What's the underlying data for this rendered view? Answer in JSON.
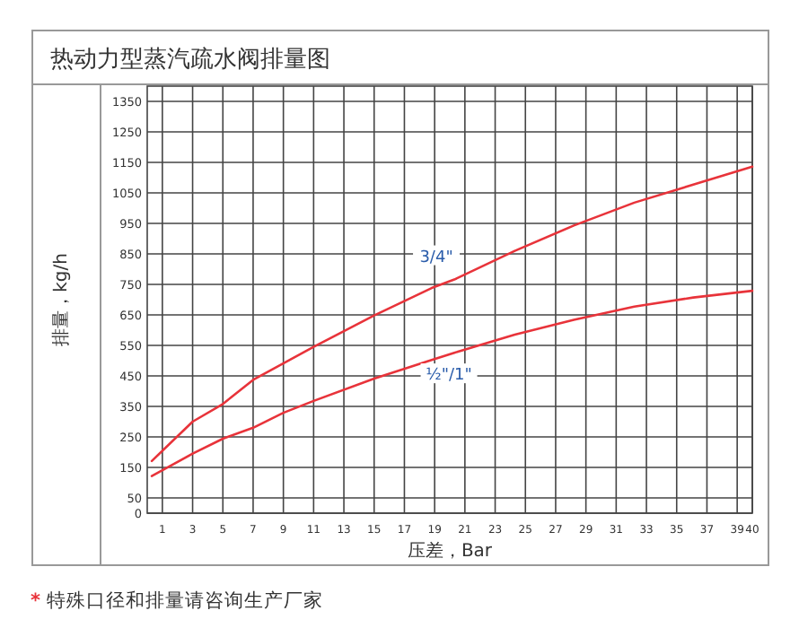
{
  "chart_data": {
    "type": "line",
    "title": "热动力型蒸汽疏水阀排量图",
    "xlabel": "压差，Bar",
    "ylabel": "排量，kg/h",
    "xlim": [
      0,
      40
    ],
    "ylim": [
      0,
      1400
    ],
    "xticks": [
      1,
      3,
      5,
      7,
      9,
      11,
      13,
      15,
      17,
      19,
      21,
      23,
      25,
      27,
      29,
      31,
      33,
      35,
      37,
      39,
      40
    ],
    "yticks": [
      0,
      50,
      150,
      250,
      350,
      450,
      550,
      650,
      750,
      850,
      950,
      1050,
      1150,
      1250,
      1350
    ],
    "grid": true,
    "series": [
      {
        "name": "3/4\"",
        "color": "#e8333a",
        "x": [
          0.3,
          3,
          5,
          7,
          11,
          15,
          18.8,
          20.3,
          24.3,
          28.2,
          32.2,
          36.1,
          40
        ],
        "values": [
          171,
          300,
          358,
          437,
          545,
          648,
          738,
          766,
          860,
          943,
          1018,
          1077,
          1136
        ]
      },
      {
        "name": "½\"/1\"",
        "color": "#e8333a",
        "x": [
          0.3,
          3,
          5,
          7,
          9,
          11,
          15,
          18.8,
          20.3,
          24.3,
          28.2,
          32.2,
          36.1,
          40
        ],
        "values": [
          122,
          195,
          244,
          280,
          329,
          368,
          441,
          502,
          526,
          585,
          634,
          677,
          707,
          729
        ]
      }
    ],
    "annotations": [
      "* 特殊口径和排量请咨询生产厂家"
    ]
  }
}
